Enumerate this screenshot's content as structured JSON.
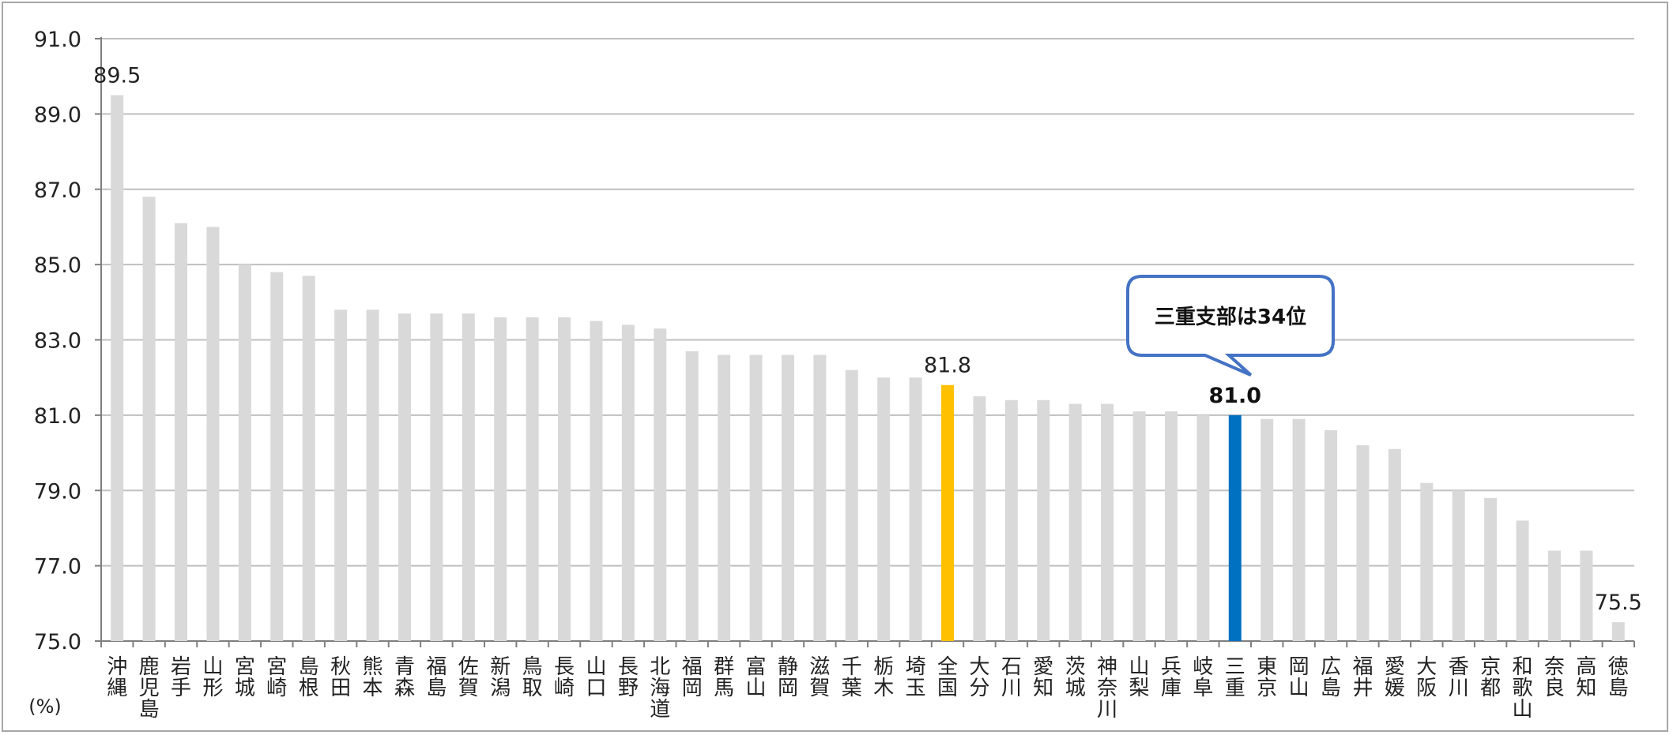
{
  "chart_data": {
    "type": "bar",
    "unit": "(%)",
    "ylim": [
      75.0,
      91.0
    ],
    "yticks": [
      "75.0",
      "77.0",
      "79.0",
      "81.0",
      "83.0",
      "85.0",
      "87.0",
      "89.0",
      "91.0"
    ],
    "grid": true,
    "categories": [
      "沖縄",
      "鹿児島",
      "岩手",
      "山形",
      "宮城",
      "宮崎",
      "島根",
      "秋田",
      "熊本",
      "青森",
      "福島",
      "佐賀",
      "新潟",
      "鳥取",
      "長崎",
      "山口",
      "長野",
      "北海道",
      "福岡",
      "群馬",
      "富山",
      "静岡",
      "滋賀",
      "千葉",
      "栃木",
      "埼玉",
      "全国",
      "大分",
      "石川",
      "愛知",
      "茨城",
      "神奈川",
      "山梨",
      "兵庫",
      "岐阜",
      "三重",
      "東京",
      "岡山",
      "広島",
      "福井",
      "愛媛",
      "大阪",
      "香川",
      "京都",
      "和歌山",
      "奈良",
      "高知",
      "徳島"
    ],
    "values": [
      89.5,
      86.8,
      86.1,
      86.0,
      85.0,
      84.8,
      84.7,
      83.8,
      83.8,
      83.7,
      83.7,
      83.7,
      83.6,
      83.6,
      83.6,
      83.5,
      83.4,
      83.3,
      82.7,
      82.6,
      82.6,
      82.6,
      82.6,
      82.2,
      82.0,
      82.0,
      81.8,
      81.5,
      81.4,
      81.4,
      81.3,
      81.3,
      81.1,
      81.1,
      81.0,
      81.0,
      80.9,
      80.9,
      80.6,
      80.2,
      80.1,
      79.2,
      79.0,
      78.8,
      78.2,
      77.4,
      77.4,
      75.5
    ],
    "data_labels": [
      {
        "category": "沖縄",
        "text": "89.5",
        "bold": false
      },
      {
        "category": "全国",
        "text": "81.8",
        "bold": false
      },
      {
        "category": "三重",
        "text": "81.0",
        "bold": true
      },
      {
        "category": "徳島",
        "text": "75.5",
        "bold": false
      }
    ],
    "highlights": {
      "全国": "#ffc000",
      "三重": "#0070c0"
    },
    "default_color": "#d9d9d9",
    "callout": {
      "text": "三重支部は34位",
      "target": "三重",
      "border_color": "#4472c4"
    }
  }
}
